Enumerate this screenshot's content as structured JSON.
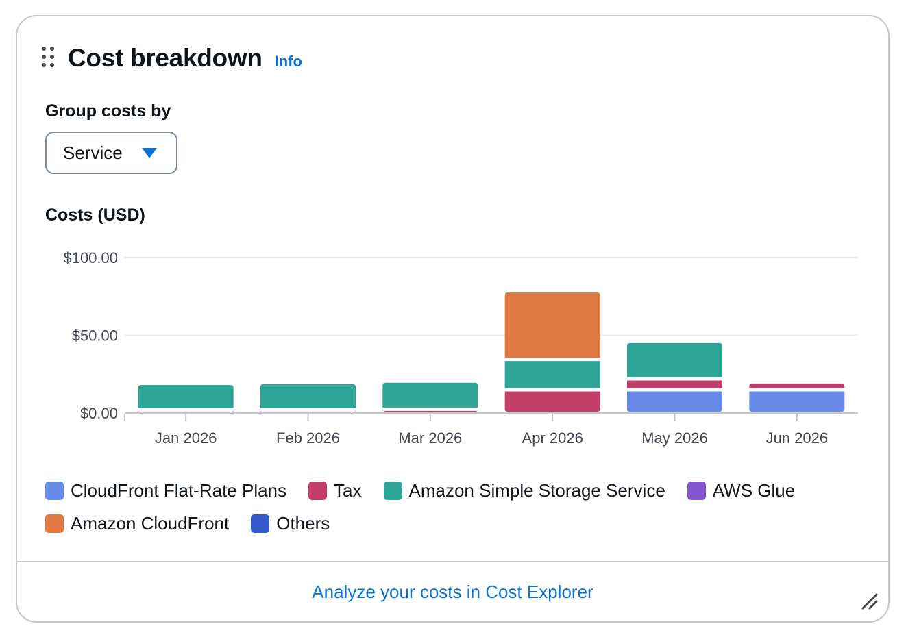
{
  "widget": {
    "title": "Cost breakdown",
    "info_label": "Info",
    "group_label": "Group costs by",
    "group_value": "Service",
    "footer_link": "Analyze your costs in Cost Explorer"
  },
  "chart_data": {
    "type": "bar",
    "stacked": true,
    "title": "Costs (USD)",
    "categories": [
      "Jan 2026",
      "Feb 2026",
      "Mar 2026",
      "Apr 2026",
      "May 2026",
      "Jun 2026"
    ],
    "yticks": [
      "$0.00",
      "$50.00",
      "$100.00"
    ],
    "ylim": [
      0,
      100
    ],
    "grid": true,
    "legend_position": "bottom",
    "series": [
      {
        "name": "CloudFront Flat-Rate Plans",
        "color": "#688ae8",
        "values": [
          0,
          0,
          0,
          0,
          15,
          15
        ]
      },
      {
        "name": "Tax",
        "color": "#c33d69",
        "values": [
          2,
          2,
          2.5,
          15,
          7,
          4
        ]
      },
      {
        "name": "Amazon Simple Storage Service",
        "color": "#2ea597",
        "values": [
          16,
          16.5,
          17,
          19.5,
          23,
          0
        ]
      },
      {
        "name": "AWS Glue",
        "color": "#8456ce",
        "values": [
          0,
          0,
          0,
          0,
          0,
          0
        ]
      },
      {
        "name": "Amazon CloudFront",
        "color": "#e07941",
        "values": [
          0,
          0,
          0,
          43,
          0,
          0
        ]
      },
      {
        "name": "Others",
        "color": "#3759ce",
        "values": [
          0,
          0,
          0,
          0,
          0,
          0
        ]
      }
    ]
  }
}
